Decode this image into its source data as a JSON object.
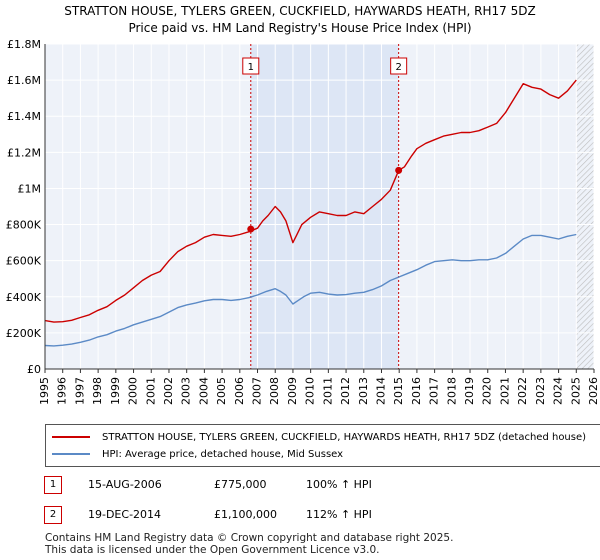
{
  "chart_data": {
    "type": "line",
    "title": "STRATTON HOUSE, TYLERS GREEN, CUCKFIELD, HAYWARDS HEATH, RH17 5DZ",
    "subtitle": "Price paid vs. HM Land Registry's House Price Index (HPI)",
    "xlim": [
      1995,
      2026
    ],
    "ylim": [
      0,
      1800000
    ],
    "x_ticks": [
      "1995",
      "1996",
      "1997",
      "1998",
      "1999",
      "2000",
      "2001",
      "2002",
      "2003",
      "2004",
      "2005",
      "2006",
      "2007",
      "2008",
      "2009",
      "2010",
      "2011",
      "2012",
      "2013",
      "2014",
      "2015",
      "2016",
      "2017",
      "2018",
      "2019",
      "2020",
      "2021",
      "2022",
      "2023",
      "2024",
      "2025",
      "2026"
    ],
    "y_ticks": [
      {
        "value": 0,
        "label": "£0"
      },
      {
        "value": 200000,
        "label": "£200K"
      },
      {
        "value": 400000,
        "label": "£400K"
      },
      {
        "value": 600000,
        "label": "£600K"
      },
      {
        "value": 800000,
        "label": "£800K"
      },
      {
        "value": 1000000,
        "label": "£1M"
      },
      {
        "value": 1200000,
        "label": "£1.2M"
      },
      {
        "value": 1400000,
        "label": "£1.4M"
      },
      {
        "value": 1600000,
        "label": "£1.6M"
      },
      {
        "value": 1800000,
        "label": "£1.8M"
      }
    ],
    "shaded_span": [
      2006.62,
      2014.97
    ],
    "series": [
      {
        "name": "STRATTON HOUSE, TYLERS GREEN, CUCKFIELD, HAYWARDS HEATH, RH17 5DZ (detached house)",
        "color": "#cc0000",
        "x": [
          1995,
          1995.5,
          1996,
          1996.5,
          1997,
          1997.5,
          1998,
          1998.5,
          1999,
          1999.5,
          2000,
          2000.5,
          2001,
          2001.5,
          2002,
          2002.5,
          2003,
          2003.5,
          2004,
          2004.5,
          2005,
          2005.5,
          2006,
          2006.5,
          2007,
          2007.3,
          2007.6,
          2008,
          2008.3,
          2008.6,
          2009,
          2009.2,
          2009.5,
          2010,
          2010.5,
          2011,
          2011.5,
          2012,
          2012.5,
          2013,
          2013.5,
          2014,
          2014.5,
          2014.97,
          2015.3,
          2015.7,
          2016,
          2016.5,
          2017,
          2017.5,
          2018,
          2018.5,
          2019,
          2019.5,
          2020,
          2020.5,
          2021,
          2021.5,
          2022,
          2022.5,
          2023,
          2023.5,
          2024,
          2024.5,
          2025.0
        ],
        "y": [
          268000,
          260000,
          262000,
          270000,
          285000,
          300000,
          325000,
          345000,
          380000,
          410000,
          450000,
          490000,
          520000,
          540000,
          600000,
          650000,
          680000,
          700000,
          730000,
          745000,
          740000,
          735000,
          745000,
          760000,
          780000,
          820000,
          850000,
          900000,
          870000,
          820000,
          700000,
          740000,
          800000,
          840000,
          870000,
          860000,
          850000,
          850000,
          870000,
          860000,
          900000,
          940000,
          990000,
          1100000,
          1120000,
          1180000,
          1220000,
          1250000,
          1270000,
          1290000,
          1300000,
          1310000,
          1310000,
          1320000,
          1340000,
          1360000,
          1420000,
          1500000,
          1580000,
          1560000,
          1550000,
          1520000,
          1500000,
          1540000,
          1600000
        ]
      },
      {
        "name": "HPI: Average price, detached house, Mid Sussex",
        "color": "#5b8ac6",
        "x": [
          1995,
          1995.5,
          1996,
          1996.5,
          1997,
          1997.5,
          1998,
          1998.5,
          1999,
          1999.5,
          2000,
          2000.5,
          2001,
          2001.5,
          2002,
          2002.5,
          2003,
          2003.5,
          2004,
          2004.5,
          2005,
          2005.5,
          2006,
          2006.5,
          2007,
          2007.5,
          2008,
          2008.3,
          2008.6,
          2009,
          2009.3,
          2009.6,
          2010,
          2010.5,
          2011,
          2011.5,
          2012,
          2012.5,
          2013,
          2013.5,
          2014,
          2014.5,
          2015,
          2015.5,
          2016,
          2016.5,
          2017,
          2017.5,
          2018,
          2018.5,
          2019,
          2019.5,
          2020,
          2020.5,
          2021,
          2021.5,
          2022,
          2022.5,
          2023,
          2023.5,
          2024,
          2024.5,
          2025.0
        ],
        "y": [
          130000,
          128000,
          132000,
          138000,
          148000,
          160000,
          178000,
          190000,
          210000,
          225000,
          245000,
          260000,
          275000,
          290000,
          315000,
          340000,
          355000,
          365000,
          378000,
          385000,
          385000,
          380000,
          385000,
          395000,
          410000,
          430000,
          445000,
          430000,
          410000,
          360000,
          380000,
          400000,
          420000,
          425000,
          415000,
          410000,
          412000,
          420000,
          425000,
          440000,
          460000,
          490000,
          510000,
          530000,
          550000,
          575000,
          595000,
          600000,
          605000,
          600000,
          600000,
          605000,
          605000,
          615000,
          640000,
          680000,
          720000,
          740000,
          740000,
          730000,
          720000,
          735000,
          745000
        ]
      }
    ],
    "sales": [
      {
        "label": "1",
        "x": 2006.62,
        "y": 775000
      },
      {
        "label": "2",
        "x": 2014.97,
        "y": 1100000
      }
    ]
  },
  "legend": {
    "items": [
      {
        "label": "STRATTON HOUSE, TYLERS GREEN, CUCKFIELD, HAYWARDS HEATH, RH17 5DZ (detached house)",
        "color": "#cc0000"
      },
      {
        "label": "HPI: Average price, detached house, Mid Sussex",
        "color": "#5b8ac6"
      }
    ]
  },
  "transactions": [
    {
      "num": "1",
      "date": "15-AUG-2006",
      "price": "£775,000",
      "hpi": "100% ↑ HPI"
    },
    {
      "num": "2",
      "date": "19-DEC-2014",
      "price": "£1,100,000",
      "hpi": "112% ↑ HPI"
    }
  ],
  "footer": {
    "line1": "Contains HM Land Registry data © Crown copyright and database right 2025.",
    "line2": "This data is licensed under the Open Government Licence v3.0."
  }
}
